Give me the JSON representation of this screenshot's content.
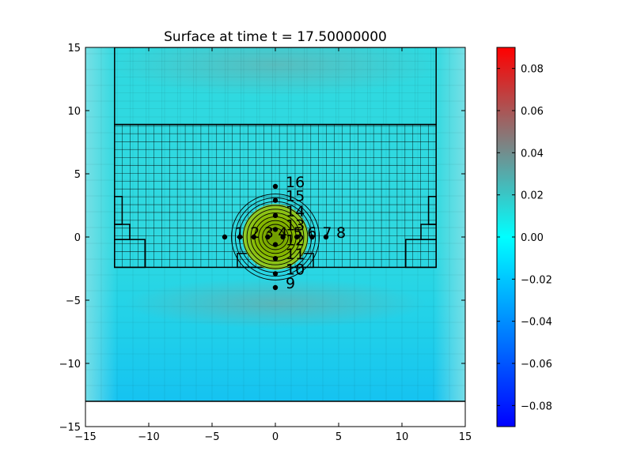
{
  "chart_data": {
    "type": "heatmap",
    "title": "Surface at time t =     17.50000000",
    "xlim": [
      -15,
      15
    ],
    "ylim": [
      -15,
      15
    ],
    "xticks": [
      -15,
      -10,
      -5,
      0,
      5,
      10,
      15
    ],
    "yticks": [
      -15,
      -10,
      -5,
      0,
      5,
      10,
      15
    ],
    "xtick_labels": [
      "−15",
      "−10",
      "−5",
      "0",
      "5",
      "10",
      "15"
    ],
    "ytick_labels": [
      "−15",
      "−10",
      "−5",
      "0",
      "5",
      "10",
      "15"
    ],
    "domain_ymin": -13,
    "colorbar": {
      "vmin": -0.09,
      "vmax": 0.09,
      "ticks": [
        -0.08,
        -0.06,
        -0.04,
        -0.02,
        0.0,
        0.02,
        0.04,
        0.06,
        0.08
      ],
      "tick_labels": [
        "−0.08",
        "−0.06",
        "−0.04",
        "−0.02",
        "0.00",
        "0.02",
        "0.04",
        "0.06",
        "0.08"
      ],
      "colors": [
        "#0000ff",
        "#0080ff",
        "#00ffff",
        "#808080",
        "#ff0000"
      ]
    },
    "gauges": [
      {
        "id": "1",
        "x": -4,
        "y": 0
      },
      {
        "id": "2",
        "x": -2.8,
        "y": 0
      },
      {
        "id": "3",
        "x": -1.7,
        "y": 0
      },
      {
        "id": "4",
        "x": -0.6,
        "y": 0
      },
      {
        "id": "5",
        "x": 0.6,
        "y": 0
      },
      {
        "id": "6",
        "x": 1.7,
        "y": 0
      },
      {
        "id": "7",
        "x": 2.9,
        "y": 0
      },
      {
        "id": "8",
        "x": 4,
        "y": 0
      },
      {
        "id": "9",
        "x": 0,
        "y": -4
      },
      {
        "id": "10",
        "x": 0,
        "y": -2.9
      },
      {
        "id": "11",
        "x": 0,
        "y": -1.7
      },
      {
        "id": "12",
        "x": 0,
        "y": -0.6
      },
      {
        "id": "13",
        "x": 0,
        "y": 0.6
      },
      {
        "id": "14",
        "x": 0,
        "y": 1.7
      },
      {
        "id": "15",
        "x": 0,
        "y": 2.9
      },
      {
        "id": "16",
        "x": 0,
        "y": 4
      }
    ],
    "patches": [
      {
        "x0": -15,
        "x1": 15,
        "y0": -13,
        "y1": 15,
        "level": 1
      },
      {
        "x0": -12.7,
        "x1": 12.7,
        "y0": -2.4,
        "y1": 8.9,
        "level": 3
      },
      {
        "x0": -12.7,
        "x1": 12.7,
        "y0": 8.9,
        "y1": 15,
        "level": 1
      },
      {
        "x0": -12.7,
        "x1": -10.3,
        "y0": -2.4,
        "y1": -0.2,
        "level": 1
      },
      {
        "x0": 10.3,
        "x1": 12.7,
        "y0": -2.4,
        "y1": -0.2,
        "level": 1
      },
      {
        "x0": -12.7,
        "x1": -11.5,
        "y0": -0.2,
        "y1": 1,
        "level": 1
      },
      {
        "x0": 11.5,
        "x1": 12.7,
        "y0": -0.2,
        "y1": 1,
        "level": 1
      },
      {
        "x0": -12.7,
        "x1": -12.1,
        "y0": 1,
        "y1": 3.2,
        "level": 1
      },
      {
        "x0": 12.1,
        "x1": 12.7,
        "y0": 1,
        "y1": 3.2,
        "level": 1
      },
      {
        "x0": -3,
        "x1": 3,
        "y0": -2.4,
        "y1": -1.3,
        "level": 1
      }
    ],
    "hump": {
      "cx": 0,
      "cy": 0,
      "contour_radii": [
        0.7,
        1.0,
        1.3,
        1.6,
        1.9,
        2.2,
        2.5,
        2.8,
        3.1,
        3.4
      ]
    }
  }
}
